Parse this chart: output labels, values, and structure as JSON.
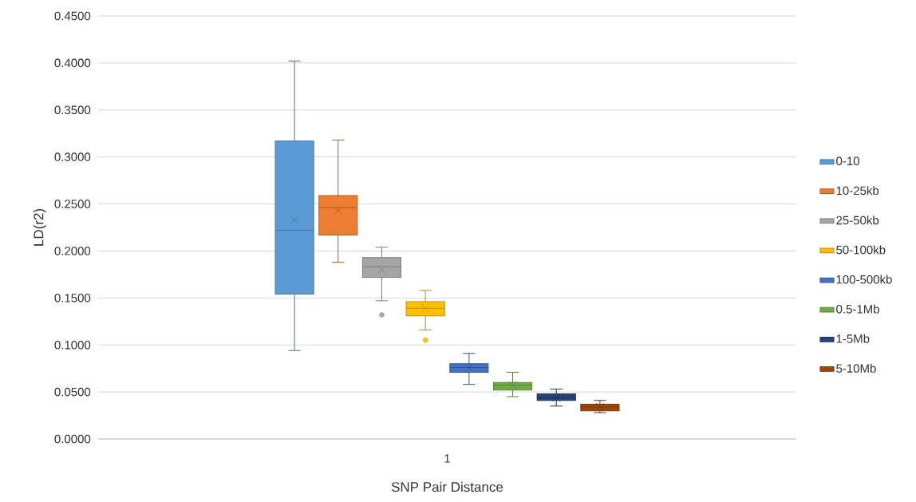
{
  "chart_data": {
    "type": "box",
    "xlabel": "SNP Pair Distance",
    "ylabel": "LD(r2)",
    "categories": [
      "1"
    ],
    "ylim": [
      0,
      0.45
    ],
    "yticks": [
      {
        "value": 0,
        "label": "0.0000"
      },
      {
        "value": 0.05,
        "label": "0.0500"
      },
      {
        "value": 0.1,
        "label": "0.1000"
      },
      {
        "value": 0.15,
        "label": "0.1500"
      },
      {
        "value": 0.2,
        "label": "0.2000"
      },
      {
        "value": 0.25,
        "label": "0.2500"
      },
      {
        "value": 0.3,
        "label": "0.3000"
      },
      {
        "value": 0.35,
        "label": "0.3500"
      },
      {
        "value": 0.4,
        "label": "0.4000"
      },
      {
        "value": 0.45,
        "label": "0.4500"
      }
    ],
    "grid": "y",
    "legend": "right",
    "series": [
      {
        "name": "0-10",
        "color": "#5b9bd5",
        "boxes": [
          {
            "low": 0.094,
            "q1": 0.154,
            "median": 0.222,
            "q3": 0.317,
            "high": 0.402,
            "mean": 0.233
          }
        ]
      },
      {
        "name": "10-25kb",
        "color": "#ed7d31",
        "boxes": [
          {
            "low": 0.188,
            "q1": 0.217,
            "median": 0.246,
            "q3": 0.259,
            "high": 0.318,
            "mean": 0.243
          }
        ]
      },
      {
        "name": "25-50kb",
        "color": "#a5a5a5",
        "boxes": [
          {
            "low": 0.147,
            "q1": 0.172,
            "median": 0.183,
            "q3": 0.193,
            "high": 0.204,
            "mean": 0.18,
            "outliers": [
              0.132
            ]
          }
        ]
      },
      {
        "name": "50-100kb",
        "color": "#ffc000",
        "boxes": [
          {
            "low": 0.116,
            "q1": 0.131,
            "median": 0.139,
            "q3": 0.146,
            "high": 0.158,
            "mean": 0.139,
            "outliers": [
              0.105
            ]
          }
        ]
      },
      {
        "name": "100-500kb",
        "color": "#4472c4",
        "boxes": [
          {
            "low": 0.058,
            "q1": 0.071,
            "median": 0.076,
            "q3": 0.08,
            "high": 0.091,
            "mean": 0.076
          }
        ]
      },
      {
        "name": "0.5-1Mb",
        "color": "#70ad47",
        "boxes": [
          {
            "low": 0.045,
            "q1": 0.052,
            "median": 0.057,
            "q3": 0.06,
            "high": 0.071,
            "mean": 0.057
          }
        ]
      },
      {
        "name": "1-5Mb",
        "color": "#264478",
        "boxes": [
          {
            "low": 0.035,
            "q1": 0.041,
            "median": 0.044,
            "q3": 0.048,
            "high": 0.053,
            "mean": 0.044
          }
        ]
      },
      {
        "name": "5-10Mb",
        "color": "#9e480e",
        "boxes": [
          {
            "low": 0.028,
            "q1": 0.03,
            "median": 0.034,
            "q3": 0.037,
            "high": 0.041,
            "mean": 0.034
          }
        ]
      }
    ]
  }
}
